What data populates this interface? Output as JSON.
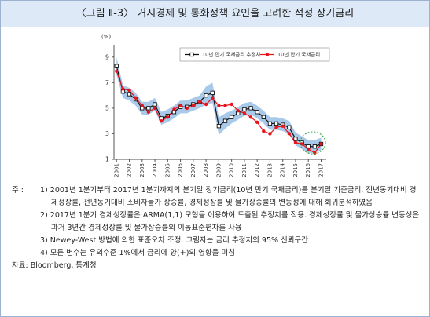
{
  "title": "〈그림 Ⅱ-3〉 거시경제 및 통화정책 요인을 고려한 적정 장기금리",
  "chart_data": {
    "type": "line",
    "y_label": "(%)",
    "x": [
      2001,
      2001.5,
      2002,
      2002.5,
      2003,
      2003.5,
      2004,
      2004.5,
      2005,
      2005.5,
      2006,
      2006.5,
      2007,
      2007.5,
      2008,
      2008.5,
      2009,
      2009.5,
      2010,
      2010.5,
      2011,
      2011.5,
      2012,
      2012.5,
      2013,
      2013.5,
      2014,
      2014.5,
      2015,
      2015.5,
      2016,
      2016.5,
      2017
    ],
    "xlim": [
      2000.8,
      2017.4
    ],
    "xticks": [
      2001,
      2002,
      2003,
      2004,
      2005,
      2006,
      2007,
      2008,
      2009,
      2010,
      2011,
      2012,
      2013,
      2014,
      2015,
      2016,
      2017
    ],
    "ylim": [
      1,
      9.6
    ],
    "yticks": [
      1,
      3,
      5,
      7,
      9
    ],
    "series": [
      {
        "name": "10년 만기 국채금리 추정치",
        "color": "#111111",
        "marker": "square",
        "values": [
          8.3,
          6.3,
          6.1,
          5.7,
          5.0,
          5.0,
          5.3,
          4.2,
          4.4,
          4.7,
          5.1,
          5.1,
          5.3,
          5.5,
          6.0,
          6.2,
          3.6,
          4.0,
          4.3,
          4.6,
          4.9,
          5.0,
          4.7,
          4.3,
          3.8,
          3.8,
          3.7,
          3.5,
          2.6,
          2.3,
          2.0,
          2.0,
          2.2
        ]
      },
      {
        "name": "10년 만기 국채금리",
        "color": "#e8141c",
        "marker": "circle",
        "values": [
          7.9,
          6.5,
          6.4,
          5.8,
          5.2,
          4.7,
          5.0,
          4.0,
          4.3,
          4.9,
          5.2,
          5.0,
          5.2,
          5.5,
          5.3,
          5.8,
          5.2,
          5.2,
          5.3,
          4.8,
          4.6,
          4.3,
          3.9,
          3.2,
          3.0,
          3.5,
          3.6,
          3.0,
          2.3,
          2.2,
          1.8,
          1.5,
          2.2
        ]
      }
    ],
    "band": {
      "color": "#a9c9ea",
      "lower": [
        7.6,
        5.8,
        5.6,
        5.2,
        4.5,
        4.5,
        4.8,
        3.7,
        3.9,
        4.2,
        4.6,
        4.6,
        4.8,
        5.0,
        5.3,
        5.4,
        2.9,
        3.4,
        3.8,
        4.1,
        4.4,
        4.5,
        4.2,
        3.8,
        3.3,
        3.3,
        3.2,
        3.0,
        2.1,
        1.8,
        1.5,
        1.5,
        1.7
      ],
      "upper": [
        9.0,
        6.8,
        6.6,
        6.2,
        5.5,
        5.5,
        5.8,
        4.7,
        4.9,
        5.2,
        5.6,
        5.6,
        5.8,
        6.0,
        6.7,
        7.0,
        4.3,
        4.6,
        4.8,
        5.1,
        5.4,
        5.5,
        5.2,
        4.8,
        4.3,
        4.3,
        4.2,
        4.0,
        3.1,
        2.8,
        2.5,
        2.5,
        2.7
      ]
    }
  },
  "notes": {
    "label": "주 :",
    "items": [
      "1) 2001년 1분기부터 2017년 1분기까지의 분기말 장기금리(10년 만기 국채금리)를 분기말 기준금리, 전년동기대비 경제성장률, 전년동기대비 소비자물가 상승률, 경제성장률 및 물가상승률의 변동성에 대해 회귀분석하였음",
      "2) 2017년 1분기 경제성장률은 ARMA(1,1) 모형을 이용하여 도출된 추정치를 적용. 경제성장률 및 물가상승률 변동성은 과거 3년간 경제성장률 및 물가상승률의 이동표준편차를 사용",
      "3) Newey-West 방법에 의한 표준오차 조정. 그림자는 금리 추정치의 95% 신뢰구간",
      "4) 모든 변수는 유의수준 1%에서 금리에 양(+)의 영향을 미침"
    ]
  },
  "source": "자료: Bloomberg, 통계청"
}
